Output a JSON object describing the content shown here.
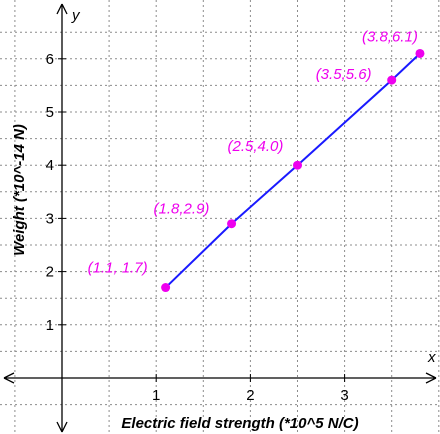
{
  "chart_data": {
    "type": "line",
    "xlabel": "Electric field strength (*10^5 N/C)",
    "ylabel": "Weight (*10^-14 N)",
    "x_axis_name": "x",
    "y_axis_name": "y",
    "xlim": [
      -0.7,
      4.15
    ],
    "ylim": [
      -1.0,
      6.8
    ],
    "x_ticks": [
      1,
      2,
      3
    ],
    "y_ticks": [
      1,
      2,
      3,
      4,
      5,
      6
    ],
    "grid": true,
    "series": [
      {
        "x": [
          1.1,
          1.8,
          2.5,
          3.5,
          3.8
        ],
        "y": [
          1.7,
          2.9,
          4.0,
          5.6,
          6.1
        ],
        "color": "#1a1aff",
        "point_color": "#ee00ee"
      }
    ],
    "data_labels": [
      "(1.1, 1.7)",
      "(1.8,2.9)",
      "(2.5,4.0)",
      "(3.5,5.6)",
      "(3.8,6.1)"
    ]
  }
}
